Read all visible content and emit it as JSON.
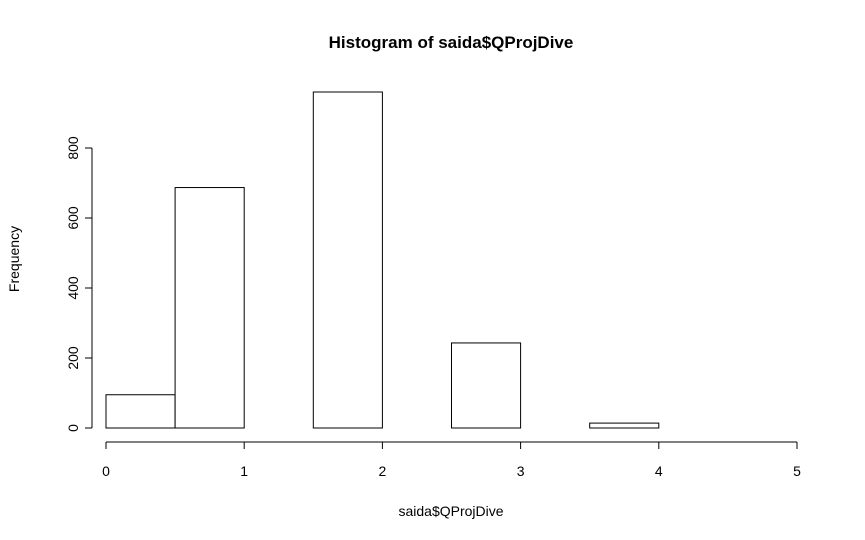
{
  "chart_data": {
    "type": "bar",
    "title": "Histogram of saida$QProjDive",
    "xlabel": "saida$QProjDive",
    "ylabel": "Frequency",
    "bins": [
      {
        "start": 0.0,
        "end": 0.5,
        "count": 95
      },
      {
        "start": 0.5,
        "end": 1.0,
        "count": 687
      },
      {
        "start": 1.0,
        "end": 1.5,
        "count": 0
      },
      {
        "start": 1.5,
        "end": 2.0,
        "count": 960
      },
      {
        "start": 2.0,
        "end": 2.5,
        "count": 0
      },
      {
        "start": 2.5,
        "end": 3.0,
        "count": 243
      },
      {
        "start": 3.0,
        "end": 3.5,
        "count": 0
      },
      {
        "start": 3.5,
        "end": 4.0,
        "count": 14
      },
      {
        "start": 4.0,
        "end": 4.5,
        "count": 0
      },
      {
        "start": 4.5,
        "end": 5.0,
        "count": 0
      }
    ],
    "x_ticks": [
      0,
      1,
      2,
      3,
      4,
      5
    ],
    "y_ticks": [
      0,
      200,
      400,
      600,
      800
    ],
    "xlim": [
      0,
      5
    ],
    "ylim": [
      0,
      1000
    ],
    "grid": false,
    "colors": {
      "bar_fill": "#ffffff",
      "bar_stroke": "#000000",
      "axis": "#000000"
    }
  }
}
